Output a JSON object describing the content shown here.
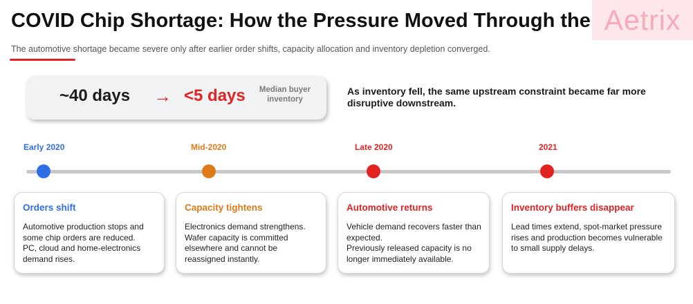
{
  "header": {
    "title": "COVID Chip Shortage: How the Pressure Moved Through the Chain",
    "subtitle": "The automotive shortage became severe only after earlier order shifts, capacity allocation and inventory depletion converged.",
    "watermark": "Aetrix"
  },
  "stat": {
    "before": "~40 days",
    "arrow": "→",
    "after": "<5 days",
    "label": "Median buyer inventory",
    "note": "As inventory fell, the same upstream constraint became far more disruptive downstream."
  },
  "colors": {
    "blue": "#2f6fe6",
    "orange": "#de7b18",
    "red": "#e32222"
  },
  "timeline": [
    {
      "period": "Early 2020",
      "card_title": "Orders shift",
      "card_body": "Automotive production stops and some chip orders are reduced.\nPC, cloud and home-electronics demand rises."
    },
    {
      "period": "Mid-2020",
      "card_title": "Capacity tightens",
      "card_body": "Electronics demand strengthens. Wafer capacity is committed elsewhere and cannot be reassigned instantly."
    },
    {
      "period": "Late 2020",
      "card_title": "Automotive returns",
      "card_body": "Vehicle demand recovers faster than expected.\nPreviously released capacity is no longer immediately available."
    },
    {
      "period": "2021",
      "card_title": "Inventory buffers disappear",
      "card_body": "Lead times extend, spot-market pressure rises and production becomes vulnerable to small supply delays."
    }
  ]
}
